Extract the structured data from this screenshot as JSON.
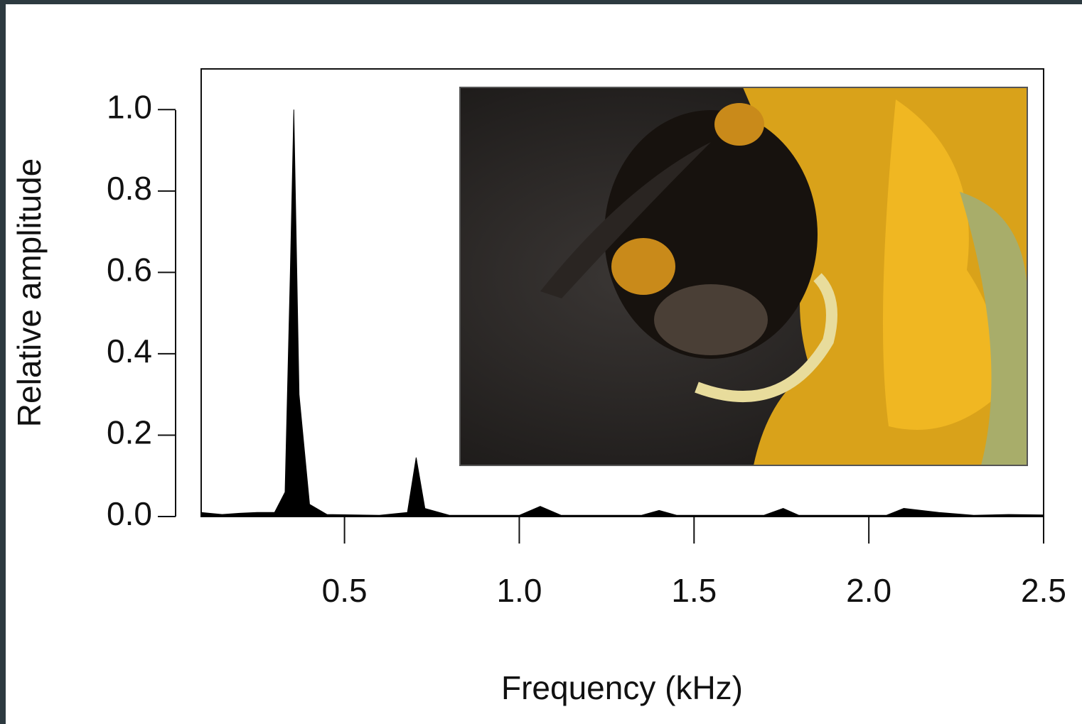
{
  "chart_data": {
    "type": "area",
    "x_label": "Frequency (kHz)",
    "y_label": "Relative amplitude",
    "x": [
      0.09,
      0.15,
      0.2,
      0.25,
      0.3,
      0.33,
      0.345,
      0.355,
      0.37,
      0.4,
      0.45,
      0.6,
      0.68,
      0.705,
      0.73,
      0.8,
      1.0,
      1.06,
      1.12,
      1.35,
      1.4,
      1.45,
      1.7,
      1.755,
      1.8,
      2.05,
      2.1,
      2.2,
      2.3,
      2.4,
      2.5
    ],
    "values": [
      0.01,
      0.005,
      0.008,
      0.01,
      0.01,
      0.06,
      0.6,
      1.0,
      0.3,
      0.03,
      0.005,
      0.003,
      0.01,
      0.145,
      0.02,
      0.003,
      0.003,
      0.025,
      0.003,
      0.003,
      0.015,
      0.003,
      0.003,
      0.02,
      0.003,
      0.003,
      0.02,
      0.01,
      0.003,
      0.005,
      0.004
    ],
    "color": "#000000",
    "xlim": [
      0.09,
      2.5
    ],
    "xticks": [
      0.5,
      {
        "value": 1,
        "label": "1.0"
      },
      1.5,
      {
        "value": 2,
        "label": "2.0"
      },
      2.5
    ],
    "ylim": [
      0,
      1.1
    ],
    "yticks": [
      {
        "value": 0,
        "label": "0.0"
      },
      0.2,
      0.4,
      0.6,
      0.8,
      {
        "value": 1,
        "label": "1.0"
      }
    ]
  }
}
